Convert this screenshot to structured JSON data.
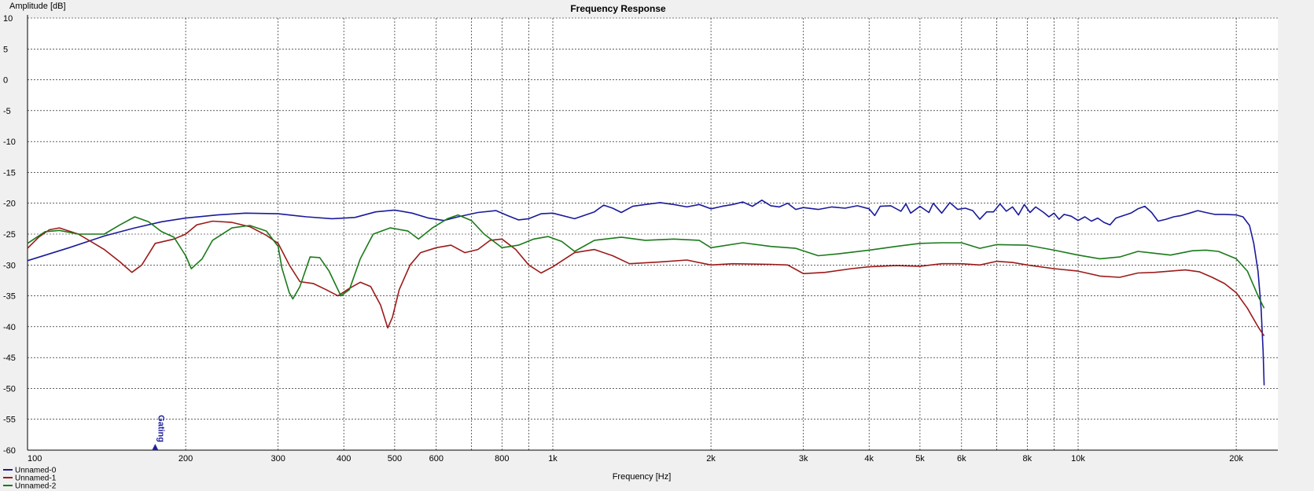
{
  "chart_data": {
    "type": "line",
    "title": "Frequency Response",
    "xlabel": "Frequency [Hz]",
    "ylabel": "Amplitude [dB]",
    "xscale": "log",
    "xlim": [
      100,
      24000
    ],
    "ylim": [
      -60,
      10
    ],
    "grid": true,
    "legend_position": "bottom-left",
    "y_ticks": [
      10,
      5,
      0,
      -5,
      -10,
      -15,
      -20,
      -25,
      -30,
      -35,
      -40,
      -45,
      -50,
      -55,
      -60
    ],
    "x_ticks": [
      {
        "value": 100,
        "label": "100"
      },
      {
        "value": 200,
        "label": "200"
      },
      {
        "value": 300,
        "label": "300"
      },
      {
        "value": 400,
        "label": "400"
      },
      {
        "value": 500,
        "label": "500"
      },
      {
        "value": 600,
        "label": "600"
      },
      {
        "value": 800,
        "label": "800"
      },
      {
        "value": 1000,
        "label": "1k"
      },
      {
        "value": 2000,
        "label": "2k"
      },
      {
        "value": 3000,
        "label": "3k"
      },
      {
        "value": 4000,
        "label": "4k"
      },
      {
        "value": 5000,
        "label": "5k"
      },
      {
        "value": 6000,
        "label": "6k"
      },
      {
        "value": 8000,
        "label": "8k"
      },
      {
        "value": 10000,
        "label": "10k"
      },
      {
        "value": 20000,
        "label": "20k"
      }
    ],
    "x_minor_grid": [
      700,
      900,
      7000,
      9000
    ],
    "marker": {
      "label": "Gating",
      "x": 175,
      "color": "#2020a0"
    },
    "series": [
      {
        "name": "Unnamed-0",
        "color": "#1a1a9c",
        "points": [
          [
            100,
            -29.3
          ],
          [
            120,
            -27.2
          ],
          [
            140,
            -25.3
          ],
          [
            160,
            -24
          ],
          [
            180,
            -23
          ],
          [
            200,
            -22.4
          ],
          [
            230,
            -21.9
          ],
          [
            260,
            -21.6
          ],
          [
            300,
            -21.7
          ],
          [
            340,
            -22.2
          ],
          [
            380,
            -22.5
          ],
          [
            420,
            -22.3
          ],
          [
            460,
            -21.4
          ],
          [
            500,
            -21.1
          ],
          [
            540,
            -21.6
          ],
          [
            580,
            -22.4
          ],
          [
            620,
            -22.8
          ],
          [
            660,
            -22.2
          ],
          [
            720,
            -21.5
          ],
          [
            780,
            -21.2
          ],
          [
            820,
            -22
          ],
          [
            860,
            -22.7
          ],
          [
            900,
            -22.5
          ],
          [
            950,
            -21.7
          ],
          [
            1000,
            -21.6
          ],
          [
            1100,
            -22.5
          ],
          [
            1200,
            -21.4
          ],
          [
            1250,
            -20.3
          ],
          [
            1300,
            -20.8
          ],
          [
            1350,
            -21.5
          ],
          [
            1420,
            -20.5
          ],
          [
            1500,
            -20.2
          ],
          [
            1600,
            -19.9
          ],
          [
            1700,
            -20.2
          ],
          [
            1800,
            -20.6
          ],
          [
            1900,
            -20.2
          ],
          [
            2000,
            -20.9
          ],
          [
            2100,
            -20.5
          ],
          [
            2200,
            -20.2
          ],
          [
            2300,
            -19.8
          ],
          [
            2400,
            -20.5
          ],
          [
            2500,
            -19.5
          ],
          [
            2600,
            -20.4
          ],
          [
            2700,
            -20.6
          ],
          [
            2800,
            -20.0
          ],
          [
            2900,
            -21
          ],
          [
            3000,
            -20.7
          ],
          [
            3200,
            -21
          ],
          [
            3400,
            -20.6
          ],
          [
            3600,
            -20.8
          ],
          [
            3800,
            -20.4
          ],
          [
            4000,
            -20.9
          ],
          [
            4100,
            -22
          ],
          [
            4200,
            -20.5
          ],
          [
            4400,
            -20.4
          ],
          [
            4600,
            -21.3
          ],
          [
            4700,
            -20.1
          ],
          [
            4800,
            -21.6
          ],
          [
            5000,
            -20.5
          ],
          [
            5200,
            -21.5
          ],
          [
            5300,
            -20.0
          ],
          [
            5500,
            -21.6
          ],
          [
            5700,
            -19.9
          ],
          [
            5900,
            -21.0
          ],
          [
            6100,
            -20.8
          ],
          [
            6300,
            -21.2
          ],
          [
            6500,
            -22.6
          ],
          [
            6700,
            -21.4
          ],
          [
            6900,
            -21.4
          ],
          [
            7100,
            -20.1
          ],
          [
            7300,
            -21.3
          ],
          [
            7500,
            -20.6
          ],
          [
            7700,
            -21.9
          ],
          [
            7900,
            -20.2
          ],
          [
            8100,
            -21.5
          ],
          [
            8300,
            -20.6
          ],
          [
            8600,
            -21.5
          ],
          [
            8800,
            -22.2
          ],
          [
            9000,
            -21.6
          ],
          [
            9200,
            -22.6
          ],
          [
            9400,
            -21.8
          ],
          [
            9700,
            -22.1
          ],
          [
            10000,
            -22.8
          ],
          [
            10300,
            -22.2
          ],
          [
            10600,
            -22.9
          ],
          [
            10900,
            -22.4
          ],
          [
            11200,
            -23.1
          ],
          [
            11500,
            -23.5
          ],
          [
            11800,
            -22.4
          ],
          [
            12200,
            -22.0
          ],
          [
            12600,
            -21.6
          ],
          [
            13000,
            -20.9
          ],
          [
            13400,
            -20.5
          ],
          [
            13800,
            -21.5
          ],
          [
            14200,
            -22.9
          ],
          [
            14700,
            -22.6
          ],
          [
            15200,
            -22.2
          ],
          [
            15700,
            -22.0
          ],
          [
            16300,
            -21.6
          ],
          [
            16900,
            -21.2
          ],
          [
            17500,
            -21.5
          ],
          [
            18200,
            -21.8
          ],
          [
            19000,
            -21.8
          ],
          [
            20000,
            -21.9
          ],
          [
            20600,
            -22.2
          ],
          [
            21200,
            -23.6
          ],
          [
            21600,
            -26.5
          ],
          [
            22000,
            -31
          ],
          [
            22300,
            -37
          ],
          [
            22500,
            -44
          ],
          [
            22600,
            -49.5
          ]
        ]
      },
      {
        "name": "Unnamed-1",
        "color": "#9c1a1a",
        "points": [
          [
            100,
            -27.3
          ],
          [
            105,
            -25.5
          ],
          [
            110,
            -24.3
          ],
          [
            115,
            -24
          ],
          [
            125,
            -25
          ],
          [
            140,
            -27.5
          ],
          [
            150,
            -29.5
          ],
          [
            158,
            -31.2
          ],
          [
            165,
            -30
          ],
          [
            175,
            -26.5
          ],
          [
            190,
            -25.8
          ],
          [
            200,
            -25
          ],
          [
            210,
            -23.5
          ],
          [
            225,
            -22.9
          ],
          [
            245,
            -23.1
          ],
          [
            265,
            -23.8
          ],
          [
            285,
            -25.2
          ],
          [
            300,
            -26.5
          ],
          [
            315,
            -30
          ],
          [
            330,
            -32.7
          ],
          [
            350,
            -33
          ],
          [
            370,
            -34
          ],
          [
            390,
            -35
          ],
          [
            410,
            -33.8
          ],
          [
            430,
            -32.8
          ],
          [
            450,
            -33.5
          ],
          [
            470,
            -36.5
          ],
          [
            485,
            -40.2
          ],
          [
            495,
            -38.5
          ],
          [
            510,
            -34
          ],
          [
            535,
            -30
          ],
          [
            560,
            -28
          ],
          [
            600,
            -27.2
          ],
          [
            640,
            -26.8
          ],
          [
            680,
            -28
          ],
          [
            720,
            -27.5
          ],
          [
            760,
            -26
          ],
          [
            800,
            -25.8
          ],
          [
            850,
            -27.5
          ],
          [
            900,
            -30
          ],
          [
            950,
            -31.3
          ],
          [
            1000,
            -30.3
          ],
          [
            1100,
            -28
          ],
          [
            1200,
            -27.5
          ],
          [
            1300,
            -28.5
          ],
          [
            1400,
            -29.8
          ],
          [
            1600,
            -29.5
          ],
          [
            1800,
            -29.2
          ],
          [
            2000,
            -30
          ],
          [
            2200,
            -29.8
          ],
          [
            2600,
            -29.9
          ],
          [
            2800,
            -30
          ],
          [
            3000,
            -31.4
          ],
          [
            3300,
            -31.2
          ],
          [
            3700,
            -30.6
          ],
          [
            4000,
            -30.3
          ],
          [
            4500,
            -30.1
          ],
          [
            5000,
            -30.2
          ],
          [
            5500,
            -29.8
          ],
          [
            6000,
            -29.8
          ],
          [
            6500,
            -30.0
          ],
          [
            7000,
            -29.4
          ],
          [
            7500,
            -29.6
          ],
          [
            8000,
            -30
          ],
          [
            9000,
            -30.6
          ],
          [
            10000,
            -31
          ],
          [
            11000,
            -31.8
          ],
          [
            12000,
            -32
          ],
          [
            13000,
            -31.3
          ],
          [
            14000,
            -31.2
          ],
          [
            15000,
            -31.0
          ],
          [
            16000,
            -30.8
          ],
          [
            17000,
            -31.1
          ],
          [
            18000,
            -32
          ],
          [
            19000,
            -33
          ],
          [
            20000,
            -34.5
          ],
          [
            21000,
            -37
          ],
          [
            22000,
            -40
          ],
          [
            22600,
            -41.5
          ]
        ]
      },
      {
        "name": "Unnamed-2",
        "color": "#1a7a1a",
        "points": [
          [
            100,
            -26.5
          ],
          [
            108,
            -24.6
          ],
          [
            115,
            -24.4
          ],
          [
            125,
            -25
          ],
          [
            140,
            -25
          ],
          [
            150,
            -23.5
          ],
          [
            160,
            -22.2
          ],
          [
            170,
            -23
          ],
          [
            180,
            -24.6
          ],
          [
            190,
            -25.5
          ],
          [
            200,
            -28.5
          ],
          [
            205,
            -30.6
          ],
          [
            215,
            -29
          ],
          [
            225,
            -26
          ],
          [
            245,
            -24
          ],
          [
            265,
            -23.6
          ],
          [
            285,
            -24.5
          ],
          [
            300,
            -27
          ],
          [
            305,
            -30.5
          ],
          [
            315,
            -34.5
          ],
          [
            320,
            -35.5
          ],
          [
            330,
            -33.5
          ],
          [
            345,
            -28.7
          ],
          [
            360,
            -28.8
          ],
          [
            375,
            -31
          ],
          [
            395,
            -35
          ],
          [
            410,
            -34
          ],
          [
            430,
            -29
          ],
          [
            455,
            -25
          ],
          [
            490,
            -24
          ],
          [
            530,
            -24.5
          ],
          [
            555,
            -25.8
          ],
          [
            590,
            -24
          ],
          [
            630,
            -22.5
          ],
          [
            660,
            -21.9
          ],
          [
            700,
            -22.8
          ],
          [
            740,
            -25
          ],
          [
            800,
            -27.2
          ],
          [
            860,
            -26.8
          ],
          [
            920,
            -25.8
          ],
          [
            980,
            -25.4
          ],
          [
            1040,
            -26.2
          ],
          [
            1100,
            -27.8
          ],
          [
            1200,
            -26
          ],
          [
            1350,
            -25.5
          ],
          [
            1500,
            -26
          ],
          [
            1700,
            -25.8
          ],
          [
            1900,
            -26
          ],
          [
            2000,
            -27.2
          ],
          [
            2300,
            -26.4
          ],
          [
            2600,
            -27
          ],
          [
            2900,
            -27.3
          ],
          [
            3200,
            -28.5
          ],
          [
            3500,
            -28.2
          ],
          [
            4000,
            -27.6
          ],
          [
            4500,
            -27.0
          ],
          [
            5000,
            -26.5
          ],
          [
            5500,
            -26.4
          ],
          [
            6000,
            -26.4
          ],
          [
            6500,
            -27.3
          ],
          [
            7000,
            -26.7
          ],
          [
            8000,
            -26.8
          ],
          [
            9000,
            -27.6
          ],
          [
            10000,
            -28.4
          ],
          [
            11000,
            -29
          ],
          [
            12000,
            -28.7
          ],
          [
            13000,
            -27.8
          ],
          [
            14000,
            -28.1
          ],
          [
            15000,
            -28.4
          ],
          [
            16500,
            -27.7
          ],
          [
            17500,
            -27.6
          ],
          [
            18500,
            -27.8
          ],
          [
            20000,
            -29
          ],
          [
            21000,
            -31
          ],
          [
            22000,
            -35
          ],
          [
            22600,
            -37
          ]
        ]
      }
    ]
  }
}
